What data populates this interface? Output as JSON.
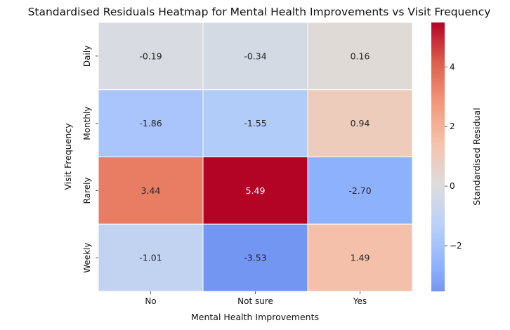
{
  "chart_data": {
    "type": "heatmap",
    "title": "Standardised Residuals Heatmap for Mental Health Improvements vs Visit Frequency",
    "xlabel": "Mental Health Improvements",
    "ylabel": "Visit Frequency",
    "x_categories": [
      "No",
      "Not sure",
      "Yes"
    ],
    "y_categories": [
      "Daily",
      "Monthly",
      "Rarely",
      "Weekly"
    ],
    "values": [
      [
        -0.19,
        -0.34,
        0.16
      ],
      [
        -1.86,
        -1.55,
        0.94
      ],
      [
        3.44,
        5.49,
        -2.7
      ],
      [
        -1.01,
        -3.53,
        1.49
      ]
    ],
    "value_labels": [
      [
        "-0.19",
        "-0.34",
        "0.16"
      ],
      [
        "-1.86",
        "-1.55",
        "0.94"
      ],
      [
        "3.44",
        "5.49",
        "-2.70"
      ],
      [
        "-1.01",
        "-3.53",
        "1.49"
      ]
    ],
    "colormap": "coolwarm",
    "center": 0,
    "vmin": -3.53,
    "vmax": 5.49,
    "colorbar": {
      "label": "Standardised Residual",
      "ticks": [
        -2,
        0,
        2,
        4
      ],
      "tick_labels": [
        "−2",
        "0",
        "2",
        "4"
      ]
    }
  }
}
